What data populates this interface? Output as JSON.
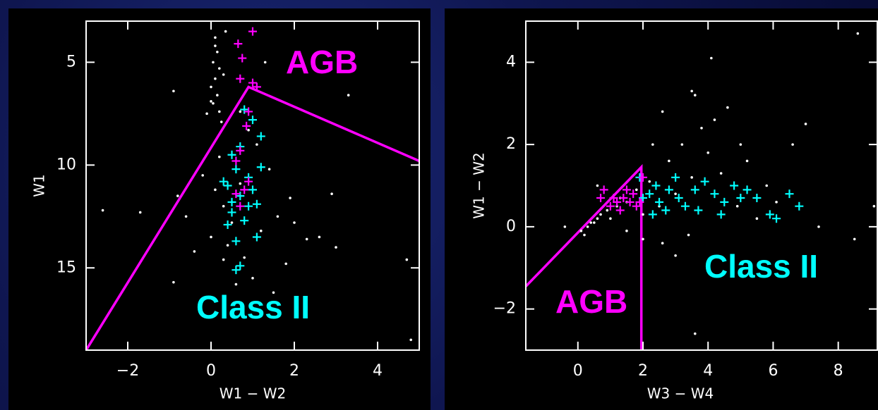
{
  "chart_data": [
    {
      "type": "scatter",
      "xlabel": "W1 − W2",
      "ylabel": "W1",
      "xlim": [
        -3,
        5
      ],
      "ylim": [
        19,
        3
      ],
      "xticks": [
        {
          "value": -2,
          "label": "−2"
        },
        0,
        2,
        4
      ],
      "yticks": [
        5,
        10,
        15
      ],
      "series": [
        {
          "color": "#ffffff",
          "marker": "dot",
          "x": [
            0.1,
            0.15,
            0.05,
            0.2,
            0.1,
            0.0,
            0.15,
            0.05,
            0.2,
            0.25,
            0.1,
            0.3,
            0.0,
            0.35,
            -0.1,
            -0.2,
            0.1,
            0.3,
            0.5,
            0.0,
            0.4,
            0.8,
            1.2,
            1.6,
            2.0,
            2.3,
            1.8,
            1.0,
            0.6,
            -0.4,
            -0.6,
            -0.8,
            1.4,
            1.1,
            0.9,
            1.5,
            2.6,
            3.0,
            -2.6,
            -1.7,
            -0.9,
            4.7,
            4.8,
            3.3,
            -0.9,
            2.9,
            0.2,
            0.7,
            1.9,
            0.3,
            1.3,
            0.7
          ],
          "values": [
            3.8,
            4.5,
            5,
            5.3,
            5.8,
            6.2,
            6.6,
            7.0,
            7.4,
            7.9,
            4.2,
            5.6,
            6.9,
            3.5,
            7.5,
            10.5,
            11.2,
            12,
            12.8,
            13.5,
            13.9,
            14.5,
            13.2,
            12.5,
            12.8,
            13.6,
            14.8,
            15.5,
            15.8,
            14.2,
            12.5,
            11.5,
            10.2,
            9.0,
            8.3,
            16.2,
            13.5,
            14.0,
            12.2,
            12.3,
            15.7,
            14.6,
            18.5,
            6.6,
            6.4,
            11.4,
            9.6,
            10.9,
            11.6,
            14.6,
            5.0,
            7.4
          ]
        },
        {
          "color": "#00ffff",
          "marker": "plus",
          "x": [
            0.5,
            0.6,
            0.4,
            0.7,
            0.9,
            0.5,
            0.8,
            1.0,
            0.3,
            0.6,
            0.7,
            0.6,
            1.2,
            1.0,
            0.8,
            1.2,
            1.1,
            0.5,
            0.9,
            0.4,
            1.1,
            0.7
          ],
          "values": [
            9.5,
            10.2,
            11,
            11.5,
            12,
            12.3,
            12.7,
            11.2,
            10.8,
            13.7,
            14.9,
            15.1,
            8.6,
            7.8,
            7.3,
            10.1,
            13.5,
            11.8,
            10.6,
            12.9,
            11.9,
            9.1
          ]
        },
        {
          "color": "#ff00ff",
          "marker": "plus",
          "x": [
            1.0,
            0.65,
            0.75,
            0.7,
            1.0,
            1.1,
            0.9,
            0.85,
            0.7,
            0.6,
            0.9,
            0.6,
            0.8,
            0.7
          ],
          "values": [
            3.5,
            4.1,
            4.8,
            5.8,
            6.0,
            6.2,
            7.4,
            8.1,
            9.3,
            9.8,
            10.8,
            11.4,
            11.2,
            12.0
          ]
        }
      ],
      "lines": [
        {
          "color": "#ff00ff",
          "x": [
            -3,
            0.9,
            5
          ],
          "values": [
            19,
            6.2,
            9.8
          ]
        }
      ],
      "annotations": [
        {
          "text": "AGB",
          "color": "#ff00ff"
        },
        {
          "text": "Class II",
          "color": "#00ffff"
        }
      ]
    },
    {
      "type": "scatter",
      "xlabel": "W3 − W4",
      "ylabel": "W1 − W2",
      "xlim": [
        -1.6,
        9.2
      ],
      "ylim": [
        -3,
        5
      ],
      "xticks": [
        0,
        2,
        4,
        6,
        8
      ],
      "yticks": [
        {
          "value": -2,
          "label": "−2"
        },
        0,
        2,
        4
      ],
      "series": [
        {
          "color": "#ffffff",
          "marker": "dot",
          "x": [
            0.1,
            0.3,
            0.5,
            0.2,
            0.7,
            0.9,
            0.4,
            1.2,
            0.6,
            1.0,
            1.5,
            2.0,
            2.5,
            3.0,
            3.5,
            2.8,
            3.2,
            3.8,
            2.6,
            3.6,
            4.2,
            4.6,
            4.0,
            4.4,
            2.2,
            1.8,
            3.4,
            2.6,
            3.0,
            2.0,
            5.2,
            5.8,
            6.6,
            7.0,
            7.4,
            5.5,
            4.9,
            4.1,
            0.6,
            -0.4,
            8.5,
            3.6,
            9.1,
            8.6,
            6.1,
            5.0,
            1.3,
            2.3,
            3.5,
            1.5
          ],
          "values": [
            -0.1,
            0.0,
            0.1,
            -0.2,
            0.3,
            0.4,
            0.1,
            0.5,
            0.2,
            0.2,
            0.6,
            0.3,
            0.5,
            0.8,
            1.2,
            1.6,
            2.0,
            2.4,
            2.8,
            3.2,
            2.6,
            2.9,
            1.8,
            1.3,
            1.1,
            0.9,
            -0.2,
            -0.4,
            -0.7,
            -0.3,
            1.6,
            1.0,
            2.0,
            2.5,
            0.0,
            0.2,
            0.5,
            4.1,
            1.0,
            0.0,
            -0.3,
            -2.6,
            0.5,
            4.7,
            0.6,
            2.0,
            0.7,
            2.0,
            3.3,
            -0.1
          ]
        },
        {
          "color": "#00ffff",
          "marker": "plus",
          "x": [
            2.2,
            2.5,
            2.8,
            3.1,
            2.4,
            3.3,
            2.7,
            3.6,
            3.9,
            4.2,
            4.5,
            4.8,
            5.0,
            5.2,
            5.5,
            5.9,
            6.1,
            6.5,
            6.8,
            4.4,
            2.0,
            1.9,
            3.0,
            3.7,
            2.3
          ],
          "values": [
            0.8,
            0.6,
            0.9,
            0.7,
            1.0,
            0.5,
            0.4,
            0.9,
            1.1,
            0.8,
            0.6,
            1.0,
            0.7,
            0.9,
            0.7,
            0.3,
            0.2,
            0.8,
            0.5,
            0.3,
            0.7,
            1.2,
            1.2,
            0.4,
            0.3
          ]
        },
        {
          "color": "#ff00ff",
          "marker": "plus",
          "x": [
            0.8,
            1.0,
            1.2,
            1.4,
            1.6,
            1.7,
            1.8,
            1.5,
            1.3,
            1.9,
            2.0,
            1.1,
            0.7
          ],
          "values": [
            0.9,
            0.5,
            0.6,
            0.7,
            0.6,
            0.8,
            0.5,
            0.9,
            0.4,
            0.6,
            1.2,
            0.7,
            0.7
          ]
        }
      ],
      "lines": [
        {
          "color": "#ff00ff",
          "x": [
            -1.6,
            1.95,
            1.95
          ],
          "values": [
            -1.45,
            1.45,
            -3
          ]
        }
      ],
      "annotations": [
        {
          "text": "Class II",
          "color": "#00ffff"
        },
        {
          "text": "AGB",
          "color": "#ff00ff"
        }
      ]
    }
  ]
}
